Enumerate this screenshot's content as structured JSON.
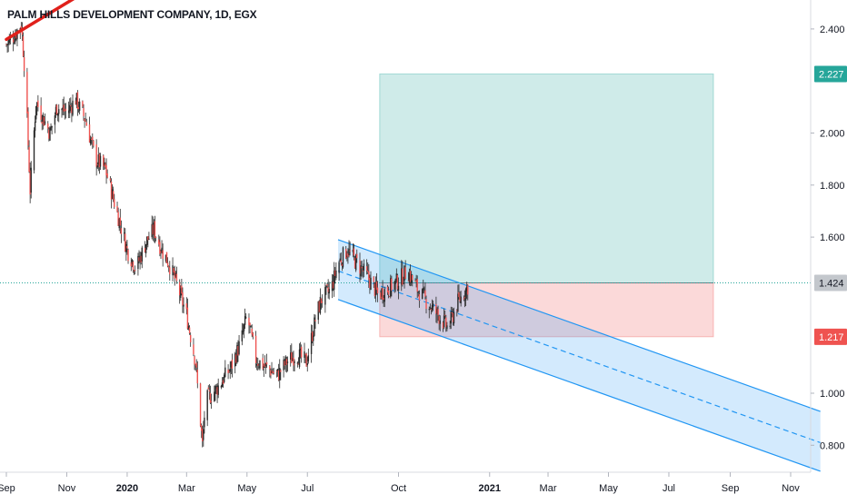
{
  "chart_data": {
    "type": "candlestick",
    "title": "PALM HILLS DEVELOPMENT COMPANY, 1D, EGX",
    "x_ticks": [
      "Sep",
      "Nov",
      "2020",
      "Mar",
      "May",
      "Jul",
      "Oct",
      "2021",
      "Mar",
      "May",
      "Jul",
      "Sep",
      "Nov"
    ],
    "bold_x_ticks": [
      "2020",
      "2021"
    ],
    "y_ticks": [
      "2.400",
      "2.000",
      "1.800",
      "1.600",
      "1.000",
      "0.800"
    ],
    "ylim": [
      0.7,
      2.53
    ],
    "price_path": [
      [
        "2019-09-01",
        2.34
      ],
      [
        "2019-09-10",
        2.38
      ],
      [
        "2019-09-16",
        2.42
      ],
      [
        "2019-09-20",
        2.22
      ],
      [
        "2019-09-25",
        1.78
      ],
      [
        "2019-10-01",
        2.12
      ],
      [
        "2019-10-08",
        2.06
      ],
      [
        "2019-10-15",
        2.0
      ],
      [
        "2019-10-22",
        2.1
      ],
      [
        "2019-11-01",
        2.08
      ],
      [
        "2019-11-10",
        2.13
      ],
      [
        "2019-11-20",
        2.05
      ],
      [
        "2019-11-30",
        1.9
      ],
      [
        "2019-12-10",
        1.86
      ],
      [
        "2019-12-20",
        1.72
      ],
      [
        "2020-01-01",
        1.55
      ],
      [
        "2020-01-10",
        1.48
      ],
      [
        "2020-01-20",
        1.58
      ],
      [
        "2020-01-28",
        1.63
      ],
      [
        "2020-02-05",
        1.55
      ],
      [
        "2020-02-12",
        1.5
      ],
      [
        "2020-02-20",
        1.42
      ],
      [
        "2020-03-01",
        1.3
      ],
      [
        "2020-03-10",
        1.12
      ],
      [
        "2020-03-17",
        0.8
      ],
      [
        "2020-03-20",
        0.97
      ],
      [
        "2020-04-01",
        1.02
      ],
      [
        "2020-04-15",
        1.1
      ],
      [
        "2020-04-25",
        1.2
      ],
      [
        "2020-05-01",
        1.3
      ],
      [
        "2020-05-10",
        1.13
      ],
      [
        "2020-05-20",
        1.1
      ],
      [
        "2020-06-01",
        1.07
      ],
      [
        "2020-06-10",
        1.12
      ],
      [
        "2020-06-20",
        1.15
      ],
      [
        "2020-06-30",
        1.12
      ],
      [
        "2020-07-10",
        1.3
      ],
      [
        "2020-07-15",
        1.36
      ],
      [
        "2020-07-25",
        1.4
      ],
      [
        "2020-08-01",
        1.5
      ],
      [
        "2020-08-10",
        1.55
      ],
      [
        "2020-08-20",
        1.5
      ],
      [
        "2020-09-01",
        1.44
      ],
      [
        "2020-09-10",
        1.38
      ],
      [
        "2020-09-20",
        1.4
      ],
      [
        "2020-09-30",
        1.43
      ],
      [
        "2020-10-10",
        1.47
      ],
      [
        "2020-10-20",
        1.4
      ],
      [
        "2020-10-30",
        1.35
      ],
      [
        "2020-11-10",
        1.3
      ],
      [
        "2020-11-20",
        1.25
      ],
      [
        "2020-11-30",
        1.35
      ],
      [
        "2020-12-05",
        1.38
      ],
      [
        "2020-12-10",
        1.41
      ]
    ],
    "trendline_top_left": [
      [
        "2019-09-01",
        2.36
      ],
      [
        "2019-11-27",
        2.56
      ]
    ],
    "regression_channel": {
      "start": "2020-08-01",
      "end": "2021-12-01",
      "upper": [
        1.59,
        0.93
      ],
      "mid": [
        1.47,
        0.81
      ],
      "lower": [
        1.36,
        0.7
      ]
    },
    "position_tool": {
      "start": "2020-09-12",
      "end": "2021-08-15",
      "entry": 1.424,
      "target": 2.227,
      "stop": 1.217
    },
    "price_labels": [
      {
        "value": "2.227",
        "color": "#26a69a"
      },
      {
        "value": "1.424",
        "color": "#c3c7cc"
      },
      {
        "value": "1.217",
        "color": "#ef5350"
      }
    ],
    "current_price": 1.424,
    "grid": false
  }
}
